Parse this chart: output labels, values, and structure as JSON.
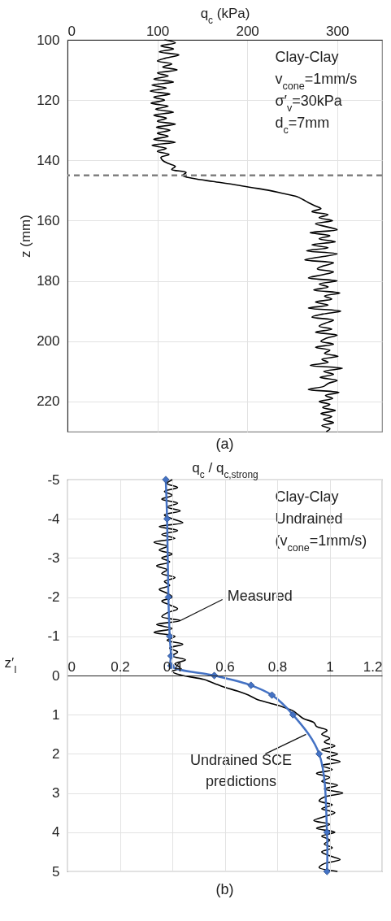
{
  "chart_data": [
    {
      "type": "line",
      "title": "(a)",
      "xlabel": "q$_{c}$ (kPa)",
      "ylabel": "z (mm)",
      "xlim": [
        0,
        350
      ],
      "xticks": [
        0,
        100,
        200,
        300
      ],
      "ylim": [
        230,
        100
      ],
      "yticks": [
        100,
        120,
        140,
        160,
        180,
        200,
        220
      ],
      "grid": true,
      "series": [
        {
          "color": "#000000",
          "x": [
            108,
            120,
            104,
            118,
            102,
            124,
            110,
            100,
            116,
            106,
            122,
            100,
            112,
            96,
            118,
            94,
            110,
            92,
            114,
            96,
            108,
            93,
            112,
            98,
            118,
            96,
            110,
            100,
            120,
            99,
            114,
            100,
            112,
            96,
            120,
            94,
            110,
            100,
            113,
            104,
            106,
            112,
            120,
            116,
            132,
            128,
            140,
            162,
            185,
            205,
            225,
            240,
            255,
            262,
            268,
            275,
            282,
            272,
            290,
            280,
            295,
            276,
            288,
            300,
            270,
            292,
            280,
            298,
            272,
            290,
            266,
            300,
            282,
            264,
            296,
            285,
            278,
            296,
            283,
            268,
            300,
            280,
            290,
            274,
            303,
            286,
            294,
            276,
            290,
            268,
            304,
            284,
            272,
            296,
            287,
            280,
            294,
            276,
            300,
            288,
            282,
            296,
            276,
            292,
            286,
            301,
            283,
            290,
            270,
            306,
            285,
            296,
            281,
            300,
            290,
            285,
            268,
            302,
            287,
            295,
            280,
            292,
            284,
            298,
            282,
            294,
            285,
            296,
            283,
            292,
            288
          ],
          "values": [
            100,
            101,
            102,
            103,
            104,
            105,
            106,
            107,
            108,
            109,
            110,
            111,
            112,
            113,
            114,
            115,
            116,
            117,
            118,
            119,
            120,
            121,
            122,
            123,
            124,
            125,
            126,
            127,
            128,
            129,
            130,
            131,
            132,
            133,
            134,
            135,
            136,
            137,
            138,
            139,
            140,
            141,
            142,
            143,
            144,
            145,
            146,
            147,
            148,
            149,
            150,
            151,
            152,
            153,
            154,
            155,
            156,
            157,
            158,
            159,
            160,
            161,
            162,
            163,
            164,
            165,
            166,
            167,
            168,
            169,
            170,
            171,
            172,
            173,
            174,
            175,
            176,
            177,
            178,
            179,
            180,
            181,
            182,
            183,
            184,
            185,
            186,
            187,
            188,
            189,
            190,
            191,
            192,
            193,
            194,
            195,
            196,
            197,
            198,
            199,
            200,
            201,
            202,
            203,
            204,
            205,
            206,
            207,
            208,
            209,
            210,
            211,
            212,
            213,
            214,
            215,
            216,
            217,
            218,
            219,
            220,
            221,
            222,
            223,
            224,
            225,
            226,
            227,
            228,
            229,
            230
          ]
        }
      ],
      "ref_lines": [
        {
          "axis": "y",
          "value": 145,
          "color": "#808080",
          "line_style": "dashed"
        }
      ],
      "annotations": [
        "Clay-Clay",
        "v$_{cone}$=1mm/s",
        "σ′$_{v}$=30kPa",
        "d$_{c}$=7mm"
      ]
    },
    {
      "type": "line",
      "title": "(b)",
      "xlabel": "q$_{c}$ / q$_{c,strong}$",
      "ylabel": "z′$_{I}$",
      "xlim": [
        0,
        1.2
      ],
      "xticks": [
        0,
        0.2,
        0.4,
        0.6,
        0.8,
        1,
        1.2
      ],
      "ylim": [
        5,
        -5
      ],
      "yticks": [
        -5,
        -4,
        -3,
        -2,
        -1,
        0,
        1,
        2,
        3,
        4,
        5
      ],
      "grid": true,
      "series": [
        {
          "color": "#000000",
          "x": [
            0.4,
            0.38,
            0.42,
            0.37,
            0.4,
            0.36,
            0.42,
            0.38,
            0.43,
            0.37,
            0.4,
            0.44,
            0.35,
            0.42,
            0.36,
            0.41,
            0.33,
            0.38,
            0.35,
            0.4,
            0.36,
            0.39,
            0.34,
            0.38,
            0.36,
            0.41,
            0.37,
            0.39,
            0.35,
            0.38,
            0.4,
            0.36,
            0.39,
            0.42,
            0.38,
            0.36,
            0.43,
            0.34,
            0.4,
            0.33,
            0.41,
            0.38,
            0.44,
            0.39,
            0.42,
            0.4,
            0.45,
            0.41,
            0.43,
            0.4,
            0.44,
            0.52,
            0.56,
            0.6,
            0.65,
            0.69,
            0.72,
            0.77,
            0.82,
            0.86,
            0.88,
            0.9,
            0.94,
            0.95,
            0.99,
            0.97,
            1.0,
            0.98,
            1.02,
            0.97,
            1.03,
            0.99,
            1.04,
            0.97,
            1.01,
            0.95,
            1.0,
            0.97,
            1.03,
            0.98,
            1.05,
            0.98,
            0.96,
            1.01,
            0.97,
            1.02,
            0.98,
            0.94,
            1.0,
            0.95,
            1.02,
            0.97,
            1.0,
            0.98,
            1.01,
            0.97,
            1.0,
            1.04,
            0.98,
            0.96,
            1.03
          ],
          "values": [
            -5,
            -4.9,
            -4.8,
            -4.7,
            -4.6,
            -4.5,
            -4.4,
            -4.3,
            -4.2,
            -4.1,
            -4,
            -3.9,
            -3.8,
            -3.7,
            -3.6,
            -3.5,
            -3.4,
            -3.3,
            -3.2,
            -3.1,
            -3,
            -2.9,
            -2.8,
            -2.7,
            -2.6,
            -2.5,
            -2.4,
            -2.3,
            -2.2,
            -2.1,
            -2,
            -1.9,
            -1.8,
            -1.7,
            -1.6,
            -1.5,
            -1.4,
            -1.3,
            -1.2,
            -1.1,
            -1,
            -0.9,
            -0.8,
            -0.7,
            -0.6,
            -0.5,
            -0.4,
            -0.3,
            -0.2,
            -0.1,
            0,
            0.1,
            0.2,
            0.3,
            0.4,
            0.5,
            0.6,
            0.7,
            0.8,
            0.9,
            1,
            1.1,
            1.2,
            1.3,
            1.4,
            1.5,
            1.6,
            1.7,
            1.8,
            1.9,
            2,
            2.1,
            2.2,
            2.3,
            2.4,
            2.5,
            2.6,
            2.7,
            2.8,
            2.9,
            3,
            3.1,
            3.2,
            3.3,
            3.4,
            3.5,
            3.6,
            3.7,
            3.8,
            3.9,
            4,
            4.1,
            4.2,
            4.3,
            4.4,
            4.5,
            4.6,
            4.7,
            4.8,
            4.9,
            5
          ]
        },
        {
          "color": "#4472c4",
          "marker": "diamond",
          "x": [
            0.375,
            0.38,
            0.385,
            0.39,
            0.395,
            0.395,
            0.56,
            0.7,
            0.78,
            0.86,
            0.96,
            0.99,
            0.99
          ],
          "values": [
            -5,
            -4,
            -2,
            -1,
            -0.5,
            -0.25,
            0,
            0.25,
            0.5,
            1,
            2,
            4,
            5
          ]
        }
      ],
      "annotations": [
        "Clay-Clay",
        "Undrained",
        "(v$_{cone}$=1mm/s)",
        {
          "text": "Measured",
          "x": 0.43,
          "y": -1.4
        },
        {
          "text": "Undrained SCE predictions",
          "x": 0.91,
          "y": 1.5
        }
      ]
    }
  ]
}
